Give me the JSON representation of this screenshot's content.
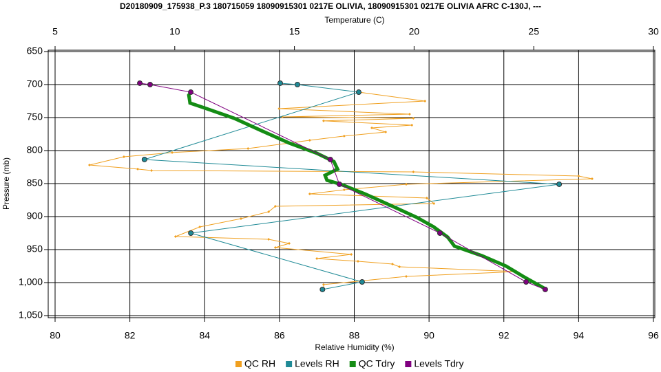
{
  "chart_data": {
    "type": "line",
    "title": "D20180909_175938_P.3 180715059 18090915301 0217E OLIVIA, 18090915301 0217E OLIVIA AFRC C-130J, ---",
    "xlabel": "Relative Humidity (%)",
    "x2label": "Temperature (C)",
    "ylabel": "Pressure (mb)",
    "xlim": [
      80,
      96
    ],
    "xticks": [
      80,
      82,
      84,
      86,
      88,
      90,
      92,
      94,
      96
    ],
    "x2lim": [
      5,
      30
    ],
    "x2ticks": [
      5,
      10,
      15,
      20,
      25,
      30
    ],
    "ylim": [
      650,
      1050
    ],
    "y_reversed": true,
    "yticks": [
      650,
      700,
      750,
      800,
      850,
      900,
      950,
      {
        "value": 1000,
        "label": "1,000"
      },
      {
        "value": 1050,
        "label": "1,050"
      }
    ],
    "grid": true,
    "legend": "bottom",
    "series": [
      {
        "name": "QC RH",
        "color": "#f0a020",
        "x": [
          88.12,
          89.89,
          85.99,
          89.48,
          86.08,
          89.58,
          87.18,
          89.54,
          88.47,
          88.84,
          87.73,
          86.81,
          85.16,
          83.13,
          81.84,
          80.92,
          82.21,
          82.58,
          89.58,
          94.0,
          94.36,
          89.39,
          87.73,
          86.81,
          89.94,
          90.13,
          85.89,
          85.71,
          84.97,
          83.87,
          83.22,
          85.71,
          86.26,
          85.89,
          87.92,
          87.0,
          88.1,
          89.02,
          89.21,
          92.34,
          89.39,
          87.18,
          87.18
        ],
        "values": [
          711.5,
          725,
          736.5,
          744.8,
          749,
          751,
          755,
          761.5,
          765.6,
          771.9,
          778,
          784.4,
          796.9,
          803,
          809.4,
          821.9,
          828,
          830.2,
          832.3,
          838.5,
          842.7,
          851,
          859.4,
          865.6,
          871.9,
          880.2,
          884.4,
          892.7,
          903.1,
          915.6,
          930.2,
          934.4,
          940.6,
          946.9,
          957.3,
          963.5,
          967.7,
          971.9,
          976,
          983.3,
          990.6,
          1003,
          1010.4
        ]
      },
      {
        "name": "Levels RH",
        "color": "#1f8a96",
        "x": [
          86.02,
          86.48,
          88.12,
          82.39,
          93.48,
          83.63,
          88.21,
          87.15
        ],
        "values": [
          697.9,
          700,
          711.5,
          813.5,
          851,
          925,
          999,
          1010.4
        ]
      },
      {
        "name": "QC Tdry",
        "color": "#148c14",
        "axis": "x2",
        "x": [
          10.58,
          10.64,
          11.33,
          12.48,
          13.63,
          14.78,
          15.93,
          16.65,
          16.8,
          16.28,
          16.36,
          16.94,
          17.95,
          19.1,
          20.1,
          20.82,
          21.4,
          21.69,
          22.84,
          23.84,
          24.56,
          25.48
        ],
        "values": [
          714.6,
          728,
          736.5,
          751,
          770,
          788.5,
          804,
          816.7,
          828,
          837.5,
          845,
          851,
          865.6,
          884.4,
          901,
          915.6,
          931,
          944.8,
          959.4,
          975,
          990.6,
          1009.4
        ]
      },
      {
        "name": "Levels Tdry",
        "color": "#800080",
        "axis": "x2",
        "x": [
          8.54,
          8.97,
          10.67,
          16.5,
          16.88,
          21.08,
          24.68,
          25.48
        ],
        "values": [
          697.9,
          700,
          711.5,
          813.5,
          851,
          925,
          999,
          1010.4
        ]
      }
    ]
  }
}
